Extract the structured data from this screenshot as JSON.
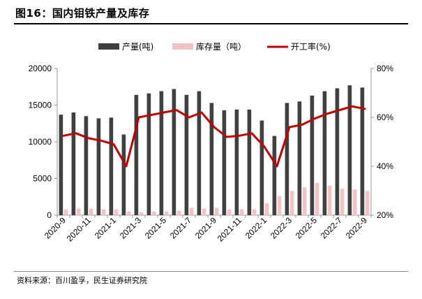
{
  "figure": {
    "title": "图16：国内钼铁产量及库存",
    "source": "资料来源：百川盈孚，民生证券研究院"
  },
  "chart_data": {
    "type": "bar",
    "categories": [
      "2020-9",
      "2020-10",
      "2020-11",
      "2020-12",
      "2021-1",
      "2021-2",
      "2021-3",
      "2021-4",
      "2021-5",
      "2021-6",
      "2021-7",
      "2021-8",
      "2021-9",
      "2021-10",
      "2021-11",
      "2021-12",
      "2022-1",
      "2022-2",
      "2022-3",
      "2022-4",
      "2022-5",
      "2022-6",
      "2022-7",
      "2022-8",
      "2022-9"
    ],
    "tick_labels": [
      "2020-9",
      "",
      "2020-11",
      "",
      "2021-1",
      "",
      "2021-3",
      "",
      "2021-5",
      "",
      "2021-7",
      "",
      "2021-9",
      "",
      "2021-11",
      "",
      "2022-1",
      "",
      "2022-3",
      "",
      "2022-5",
      "",
      "2022-7",
      "",
      "2022-9"
    ],
    "series": [
      {
        "name": "产量(吨)",
        "type": "bar",
        "axis": "left",
        "color": "#404040",
        "values": [
          13700,
          14000,
          13500,
          13200,
          13300,
          11000,
          16400,
          16600,
          16900,
          17200,
          16400,
          16900,
          15300,
          14300,
          14400,
          14400,
          12900,
          10800,
          15300,
          15500,
          16300,
          16900,
          17300,
          17700,
          17400
        ]
      },
      {
        "name": "库存量（吨）",
        "type": "bar",
        "axis": "left",
        "color": "#f0c4c4",
        "values": [
          800,
          900,
          900,
          800,
          800,
          500,
          400,
          500,
          500,
          600,
          1000,
          900,
          1000,
          800,
          800,
          800,
          1600,
          2600,
          3300,
          3800,
          4400,
          4000,
          3600,
          3500,
          3300
        ]
      },
      {
        "name": "开工率(%)",
        "type": "line",
        "axis": "right",
        "color": "#c00000",
        "values": [
          52.5,
          53.5,
          51.5,
          50.5,
          49,
          40,
          60,
          61,
          62,
          63,
          60,
          62,
          56,
          52,
          52.5,
          53.5,
          48,
          40,
          56,
          57,
          59.5,
          61.5,
          63,
          64.5,
          63.5
        ]
      }
    ],
    "y_left": {
      "min": 0,
      "max": 20000,
      "ticks": [
        0,
        5000,
        10000,
        15000,
        20000
      ],
      "tick_labels": [
        "0",
        "5000",
        "10000",
        "15000",
        "20000"
      ]
    },
    "y_right": {
      "min": 20,
      "max": 80,
      "ticks": [
        20,
        40,
        60,
        80
      ],
      "tick_labels": [
        "20%",
        "40%",
        "60%",
        "80%"
      ]
    },
    "grid": false,
    "legend_position": "top"
  }
}
